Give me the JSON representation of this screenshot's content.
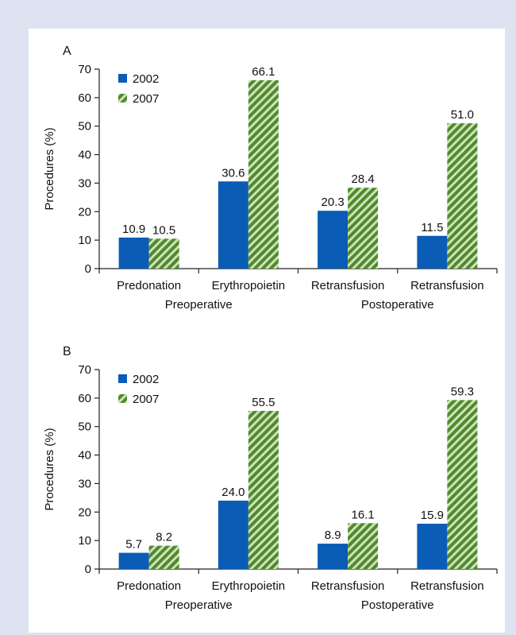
{
  "chart_data": [
    {
      "type": "bar",
      "panel_label": "A",
      "ylabel": "Procedures (%)",
      "ylim": [
        0,
        70
      ],
      "yticks": [
        0,
        10,
        20,
        30,
        40,
        50,
        60,
        70
      ],
      "categories": [
        "Predonation",
        "Erythropoietin",
        "Retransfusion",
        "Retransfusion"
      ],
      "groups": [
        {
          "label": "Preoperative",
          "categories": [
            0,
            1
          ]
        },
        {
          "label": "Postoperative",
          "categories": [
            2,
            3
          ]
        }
      ],
      "series": [
        {
          "name": "2002",
          "values": [
            10.9,
            30.6,
            20.3,
            11.5
          ],
          "labels": [
            "10.9",
            "30.6",
            "20.3",
            "11.5"
          ],
          "color": "#0a5cb5",
          "pattern": "solid"
        },
        {
          "name": "2007",
          "values": [
            10.5,
            66.1,
            28.4,
            51.0
          ],
          "labels": [
            "10.5",
            "66.1",
            "28.4",
            "51.0"
          ],
          "color": "#4f8a2e",
          "pattern": "diagonal-stripes"
        }
      ],
      "legend": "top-left",
      "grid": false
    },
    {
      "type": "bar",
      "panel_label": "B",
      "ylabel": "Procedures (%)",
      "ylim": [
        0,
        70
      ],
      "yticks": [
        0,
        10,
        20,
        30,
        40,
        50,
        60,
        70
      ],
      "categories": [
        "Predonation",
        "Erythropoietin",
        "Retransfusion",
        "Retransfusion"
      ],
      "groups": [
        {
          "label": "Preoperative",
          "categories": [
            0,
            1
          ]
        },
        {
          "label": "Postoperative",
          "categories": [
            2,
            3
          ]
        }
      ],
      "series": [
        {
          "name": "2002",
          "values": [
            5.7,
            24.0,
            8.9,
            15.9
          ],
          "labels": [
            "5.7",
            "24.0",
            "8.9",
            "15.9"
          ],
          "color": "#0a5cb5",
          "pattern": "solid"
        },
        {
          "name": "2007",
          "values": [
            8.2,
            55.5,
            16.1,
            59.3
          ],
          "labels": [
            "8.2",
            "55.5",
            "16.1",
            "59.3"
          ],
          "color": "#4f8a2e",
          "pattern": "diagonal-stripes"
        }
      ],
      "legend": "top-left",
      "grid": false
    }
  ]
}
